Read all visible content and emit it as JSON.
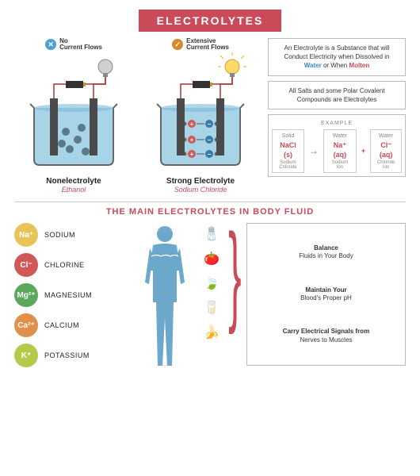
{
  "title": "ELECTROLYTES",
  "colors": {
    "accent": "#c94a58",
    "water": "#7bb8d9",
    "water_light": "#a8d4e8",
    "electrode": "#4a4a4a",
    "bulb_off": "#d0d0d0",
    "bulb_on": "#ffd966",
    "battery_body": "#333",
    "battery_tip": "#c0a030",
    "no_badge": "#4aa0d0",
    "yes_badge": "#d88a2a",
    "plus_ion": "#d05858",
    "minus_ion": "#3a7aa8"
  },
  "cell_left": {
    "badge_text": "No\nCurrent Flows",
    "badge_mark": "✕",
    "name": "Nonelectrolyte",
    "example": "Ethanol",
    "lit": false
  },
  "cell_right": {
    "badge_text": "Extensive\nCurrent Flows",
    "badge_mark": "✓",
    "name": "Strong Electrolyte",
    "example": "Sodium Chloride",
    "lit": true
  },
  "info1_pre": "An Electrolyte is a Substance that will Conduct Electricity when Dissolved in ",
  "info1_water": "Water",
  "info1_mid": " or When ",
  "info1_molten": "Molten",
  "info2": "All Salts and some Polar Covalent Compounds are Electrolytes",
  "example_label": "EXAMPLE",
  "equation": {
    "left": {
      "top": "Solid",
      "main": "NaCl (s)",
      "bot": "Sodium\nChloride"
    },
    "r1": {
      "top": "Water",
      "main": "Na⁺ (aq)",
      "bot": "Sodium\nIon"
    },
    "r2": {
      "top": "Water",
      "main": "Cl⁻ (aq)",
      "bot": "Chloride\nIon"
    }
  },
  "section2_title": "THE MAIN ELECTROLYTES IN BODY FLUID",
  "ions": [
    {
      "sym": "Na⁺",
      "name": "SODIUM",
      "color": "#e8c458",
      "food": "🧂"
    },
    {
      "sym": "Cl⁻",
      "name": "CHLORINE",
      "color": "#d05858",
      "food": "🍅"
    },
    {
      "sym": "Mg²⁺",
      "name": "MAGNESIUM",
      "color": "#5aa85a",
      "food": "🍃"
    },
    {
      "sym": "Ca²⁺",
      "name": "CALCIUM",
      "color": "#e0904a",
      "food": "🥛"
    },
    {
      "sym": "K⁺",
      "name": "POTASSIUM",
      "color": "#b5c94a",
      "food": "🍌"
    }
  ],
  "body_color": "#6ba8c9",
  "functions": [
    "Balance\nFluids in Your Body",
    "Maintain Your\nBlood's Proper pH",
    "Carry Electrical Signals from\nNerves to Muscles"
  ]
}
